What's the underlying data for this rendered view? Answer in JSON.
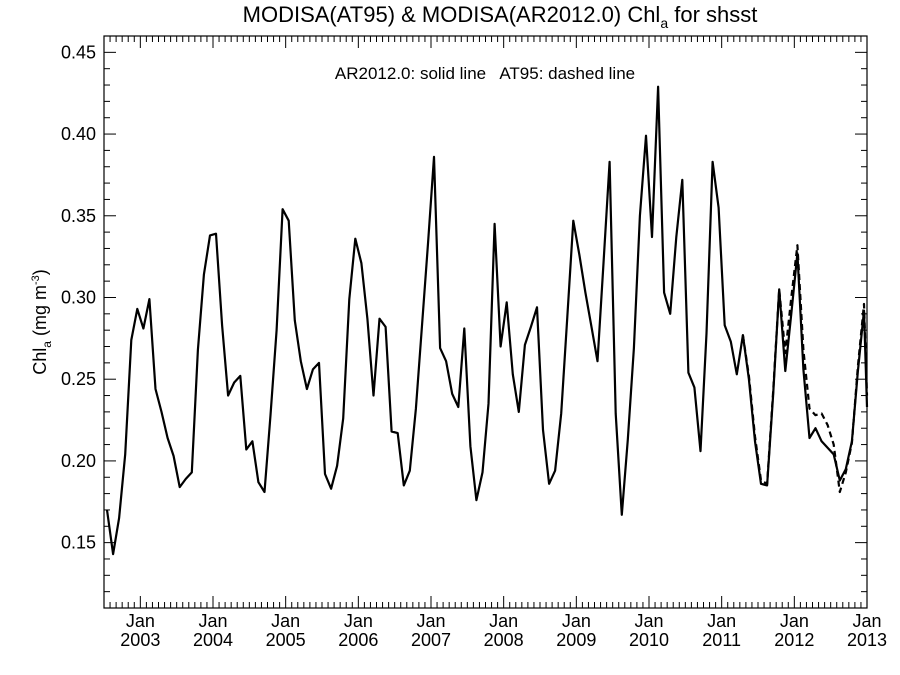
{
  "chart_data": {
    "type": "line",
    "title": {
      "main": "MODISA(AT95) & MODISA(AR2012.0)  Chl",
      "subscript": "a",
      "suffix": " for shsst"
    },
    "annotation": "AR2012.0: solid line   AT95: dashed line",
    "ylabel": {
      "main": "Chl",
      "subscript": "a",
      "unit_prefix": " (mg m",
      "unit_superscript": "-3",
      "unit_suffix": ")"
    },
    "ylim": [
      0.11,
      0.46
    ],
    "xlim": [
      "2002-07",
      "2013-01"
    ],
    "y_ticks": [
      "0.15",
      "0.20",
      "0.25",
      "0.30",
      "0.35",
      "0.40",
      "0.45"
    ],
    "x_ticks": [
      {
        "month": "Jan",
        "year": "2003",
        "date": "2003-01"
      },
      {
        "month": "Jan",
        "year": "2004",
        "date": "2004-01"
      },
      {
        "month": "Jan",
        "year": "2005",
        "date": "2005-01"
      },
      {
        "month": "Jan",
        "year": "2006",
        "date": "2006-01"
      },
      {
        "month": "Jan",
        "year": "2007",
        "date": "2007-01"
      },
      {
        "month": "Jan",
        "year": "2008",
        "date": "2008-01"
      },
      {
        "month": "Jan",
        "year": "2009",
        "date": "2009-01"
      },
      {
        "month": "Jan",
        "year": "2010",
        "date": "2010-01"
      },
      {
        "month": "Jan",
        "year": "2011",
        "date": "2011-01"
      },
      {
        "month": "Jan",
        "year": "2012",
        "date": "2012-01"
      },
      {
        "month": "Jan",
        "year": "2013",
        "date": "2013-01"
      }
    ],
    "series": [
      {
        "name": "AR2012.0",
        "style": "solid",
        "color": "#000000",
        "points": [
          [
            "2002-07",
            0.17
          ],
          [
            "2002-08",
            0.143
          ],
          [
            "2002-09",
            0.165
          ],
          [
            "2002-10",
            0.204
          ],
          [
            "2002-11",
            0.274
          ],
          [
            "2002-12",
            0.293
          ],
          [
            "2003-01",
            0.281
          ],
          [
            "2003-02",
            0.299
          ],
          [
            "2003-03",
            0.244
          ],
          [
            "2003-04",
            0.23
          ],
          [
            "2003-05",
            0.214
          ],
          [
            "2003-06",
            0.203
          ],
          [
            "2003-07",
            0.184
          ],
          [
            "2003-08",
            0.189
          ],
          [
            "2003-09",
            0.193
          ],
          [
            "2003-10",
            0.268
          ],
          [
            "2003-11",
            0.314
          ],
          [
            "2003-12",
            0.338
          ],
          [
            "2004-01",
            0.339
          ],
          [
            "2004-02",
            0.283
          ],
          [
            "2004-03",
            0.24
          ],
          [
            "2004-04",
            0.248
          ],
          [
            "2004-05",
            0.252
          ],
          [
            "2004-06",
            0.207
          ],
          [
            "2004-07",
            0.212
          ],
          [
            "2004-08",
            0.187
          ],
          [
            "2004-09",
            0.181
          ],
          [
            "2004-10",
            0.228
          ],
          [
            "2004-11",
            0.28
          ],
          [
            "2004-12",
            0.354
          ],
          [
            "2005-01",
            0.347
          ],
          [
            "2005-02",
            0.286
          ],
          [
            "2005-03",
            0.261
          ],
          [
            "2005-04",
            0.244
          ],
          [
            "2005-05",
            0.256
          ],
          [
            "2005-06",
            0.26
          ],
          [
            "2005-07",
            0.192
          ],
          [
            "2005-08",
            0.183
          ],
          [
            "2005-09",
            0.197
          ],
          [
            "2005-10",
            0.226
          ],
          [
            "2005-11",
            0.299
          ],
          [
            "2005-12",
            0.336
          ],
          [
            "2006-01",
            0.321
          ],
          [
            "2006-02",
            0.287
          ],
          [
            "2006-03",
            0.24
          ],
          [
            "2006-04",
            0.287
          ],
          [
            "2006-05",
            0.282
          ],
          [
            "2006-06",
            0.218
          ],
          [
            "2006-07",
            0.217
          ],
          [
            "2006-08",
            0.185
          ],
          [
            "2006-09",
            0.194
          ],
          [
            "2006-10",
            0.232
          ],
          [
            "2006-11",
            0.282
          ],
          [
            "2006-12",
            0.333
          ],
          [
            "2007-01",
            0.386
          ],
          [
            "2007-02",
            0.269
          ],
          [
            "2007-03",
            0.261
          ],
          [
            "2007-04",
            0.241
          ],
          [
            "2007-05",
            0.233
          ],
          [
            "2007-06",
            0.281
          ],
          [
            "2007-07",
            0.209
          ],
          [
            "2007-08",
            0.176
          ],
          [
            "2007-09",
            0.193
          ],
          [
            "2007-10",
            0.235
          ],
          [
            "2007-11",
            0.345
          ],
          [
            "2007-12",
            0.27
          ],
          [
            "2008-01",
            0.297
          ],
          [
            "2008-02",
            0.253
          ],
          [
            "2008-03",
            0.23
          ],
          [
            "2008-04",
            0.271
          ],
          [
            "2008-05",
            0.282
          ],
          [
            "2008-06",
            0.294
          ],
          [
            "2008-07",
            0.219
          ],
          [
            "2008-08",
            0.186
          ],
          [
            "2008-09",
            0.194
          ],
          [
            "2008-10",
            0.229
          ],
          [
            "2008-11",
            0.288
          ],
          [
            "2008-12",
            0.347
          ],
          [
            "2009-01",
            0.326
          ],
          [
            "2009-02",
            0.303
          ],
          [
            "2009-03",
            0.282
          ],
          [
            "2009-04",
            0.261
          ],
          [
            "2009-05",
            0.322
          ],
          [
            "2009-06",
            0.383
          ],
          [
            "2009-07",
            0.229
          ],
          [
            "2009-08",
            0.167
          ],
          [
            "2009-09",
            0.213
          ],
          [
            "2009-10",
            0.269
          ],
          [
            "2009-11",
            0.35
          ],
          [
            "2009-12",
            0.399
          ],
          [
            "2010-01",
            0.337
          ],
          [
            "2010-02",
            0.429
          ],
          [
            "2010-03",
            0.303
          ],
          [
            "2010-04",
            0.29
          ],
          [
            "2010-05",
            0.337
          ],
          [
            "2010-06",
            0.372
          ],
          [
            "2010-07",
            0.254
          ],
          [
            "2010-08",
            0.245
          ],
          [
            "2010-09",
            0.206
          ],
          [
            "2010-10",
            0.278
          ],
          [
            "2010-11",
            0.383
          ],
          [
            "2010-12",
            0.355
          ],
          [
            "2011-01",
            0.283
          ],
          [
            "2011-02",
            0.273
          ],
          [
            "2011-03",
            0.253
          ],
          [
            "2011-04",
            0.277
          ],
          [
            "2011-05",
            0.25
          ],
          [
            "2011-06",
            0.212
          ],
          [
            "2011-07",
            0.186
          ],
          [
            "2011-08",
            0.185
          ],
          [
            "2011-09",
            0.24
          ],
          [
            "2011-10",
            0.305
          ],
          [
            "2011-11",
            0.255
          ],
          [
            "2011-12",
            0.29
          ],
          [
            "2012-01",
            0.327
          ],
          [
            "2012-02",
            0.256
          ],
          [
            "2012-03",
            0.214
          ],
          [
            "2012-04",
            0.22
          ],
          [
            "2012-05",
            0.212
          ],
          [
            "2012-06",
            0.208
          ],
          [
            "2012-07",
            0.204
          ],
          [
            "2012-08",
            0.188
          ],
          [
            "2012-09",
            0.195
          ],
          [
            "2012-10",
            0.212
          ],
          [
            "2012-11",
            0.255
          ],
          [
            "2012-12",
            0.292
          ],
          [
            "2013-01",
            0.233
          ]
        ]
      },
      {
        "name": "AT95",
        "style": "dashed",
        "color": "#000000",
        "points": [
          [
            "2011-04",
            0.277
          ],
          [
            "2011-05",
            0.252
          ],
          [
            "2011-06",
            0.215
          ],
          [
            "2011-07",
            0.188
          ],
          [
            "2011-08",
            0.186
          ],
          [
            "2011-09",
            0.242
          ],
          [
            "2011-10",
            0.305
          ],
          [
            "2011-11",
            0.266
          ],
          [
            "2011-12",
            0.3
          ],
          [
            "2012-01",
            0.332
          ],
          [
            "2012-02",
            0.268
          ],
          [
            "2012-03",
            0.232
          ],
          [
            "2012-04",
            0.228
          ],
          [
            "2012-05",
            0.229
          ],
          [
            "2012-06",
            0.222
          ],
          [
            "2012-07",
            0.21
          ],
          [
            "2012-08",
            0.181
          ],
          [
            "2012-09",
            0.193
          ],
          [
            "2012-10",
            0.211
          ],
          [
            "2012-11",
            0.258
          ],
          [
            "2012-12",
            0.296
          ],
          [
            "2013-01",
            0.24
          ]
        ]
      }
    ]
  }
}
